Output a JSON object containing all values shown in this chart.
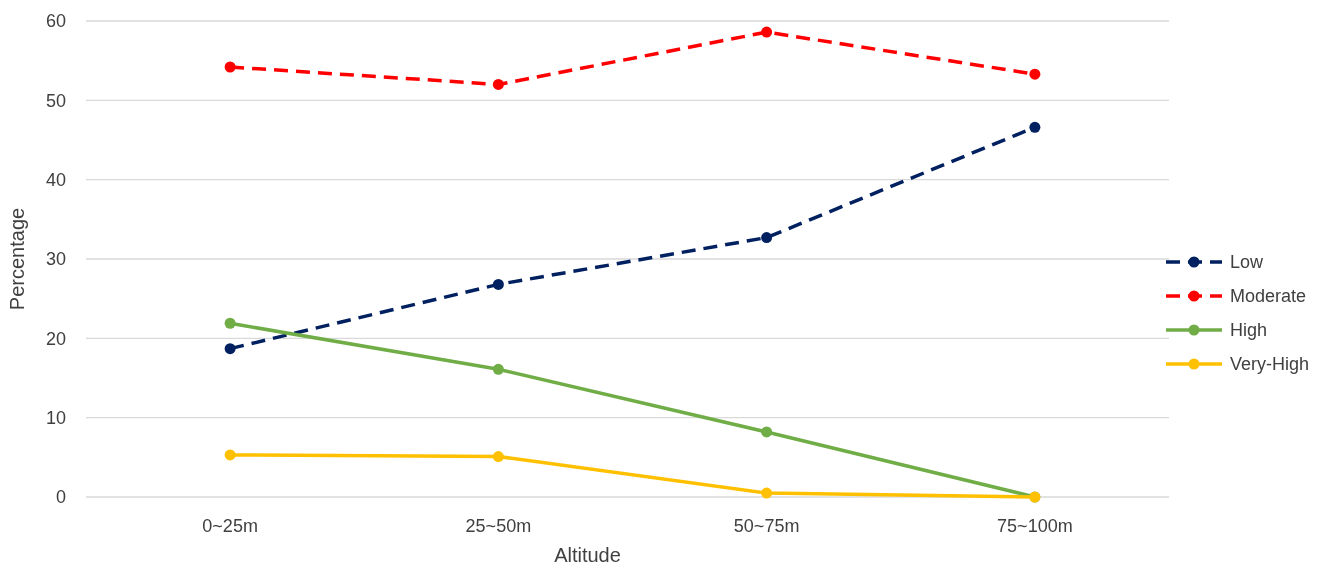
{
  "chart_data": {
    "type": "line",
    "xlabel": "Altitude",
    "ylabel": "Percentage",
    "categories": [
      "0~25m",
      "25~50m",
      "50~75m",
      "75~100m"
    ],
    "series": [
      {
        "name": "Low",
        "color": "#002060",
        "values": [
          18.7,
          26.8,
          32.7,
          46.6
        ],
        "line_style": "dashed"
      },
      {
        "name": "Moderate",
        "color": "#ff0000",
        "values": [
          54.2,
          52.0,
          58.6,
          53.3
        ],
        "line_style": "dashed"
      },
      {
        "name": "High",
        "color": "#70ad47",
        "values": [
          21.9,
          16.1,
          8.2,
          0
        ],
        "line_style": "solid"
      },
      {
        "name": "Very-High",
        "color": "#ffc000",
        "values": [
          5.3,
          5.1,
          0.5,
          0
        ],
        "line_style": "solid"
      }
    ],
    "ylim": [
      0,
      60
    ],
    "yticks": [
      0,
      10,
      20,
      30,
      40,
      50,
      60
    ],
    "grid": "y",
    "legend": "right",
    "marker": "circle"
  }
}
